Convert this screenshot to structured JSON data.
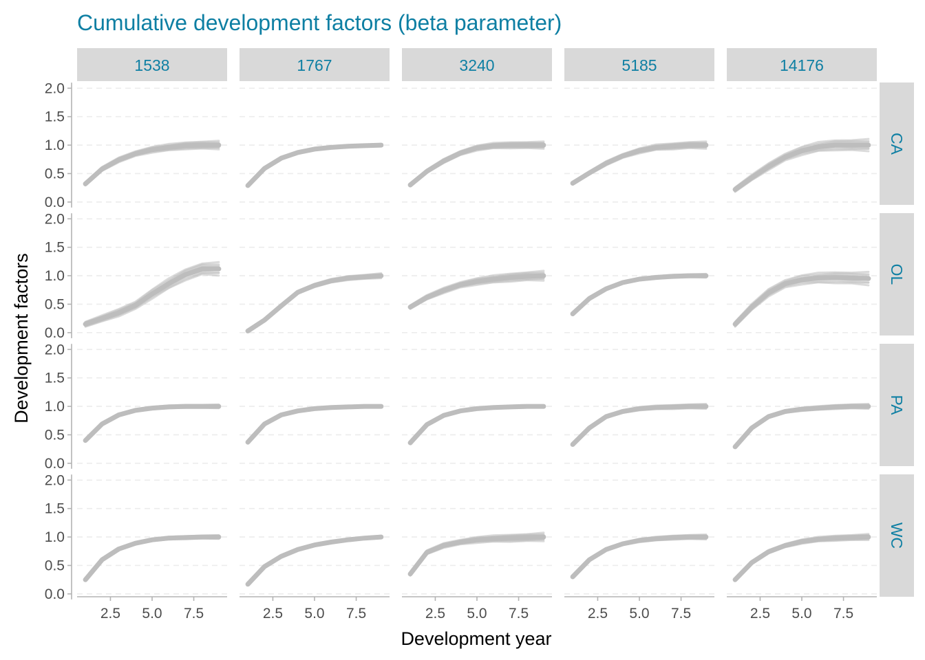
{
  "chart_data": {
    "type": "line",
    "title": "Cumulative development factors (beta parameter)",
    "xlabel": "Development year",
    "ylabel": "Development factors",
    "xlim": [
      0.5,
      9.5
    ],
    "ylim": [
      -0.05,
      2.1
    ],
    "x_ticks": [
      2.5,
      5.0,
      7.5
    ],
    "x_tick_labels": [
      "2.5",
      "5.0",
      "7.5"
    ],
    "y_ticks": [
      0.0,
      0.5,
      1.0,
      1.5,
      2.0
    ],
    "y_tick_labels": [
      "0.0",
      "0.5",
      "1.0",
      "1.5",
      "2.0"
    ],
    "columns": [
      "1538",
      "1767",
      "3240",
      "5185",
      "14176"
    ],
    "rows": [
      "CA",
      "OL",
      "PA",
      "WC"
    ],
    "x": [
      1,
      2,
      3,
      4,
      5,
      6,
      7,
      8,
      9
    ],
    "line_color": "#bdbdbd",
    "grid": true,
    "panels": [
      {
        "row": "CA",
        "col": "1538",
        "values": [
          0.32,
          0.58,
          0.74,
          0.85,
          0.92,
          0.96,
          0.99,
          1.0,
          1.0
        ],
        "spread": 0.07
      },
      {
        "row": "CA",
        "col": "1767",
        "values": [
          0.29,
          0.59,
          0.77,
          0.87,
          0.93,
          0.96,
          0.98,
          0.99,
          1.0
        ],
        "spread": 0.02
      },
      {
        "row": "CA",
        "col": "3240",
        "values": [
          0.3,
          0.54,
          0.72,
          0.86,
          0.95,
          0.99,
          1.0,
          1.0,
          1.0
        ],
        "spread": 0.06
      },
      {
        "row": "CA",
        "col": "5185",
        "values": [
          0.33,
          0.51,
          0.68,
          0.81,
          0.9,
          0.96,
          0.98,
          1.0,
          1.0
        ],
        "spread": 0.06
      },
      {
        "row": "CA",
        "col": "14176",
        "values": [
          0.22,
          0.43,
          0.62,
          0.79,
          0.9,
          0.97,
          1.0,
          1.0,
          1.0
        ],
        "spread": 0.1
      },
      {
        "row": "OL",
        "col": "1538",
        "values": [
          0.15,
          0.25,
          0.35,
          0.48,
          0.68,
          0.86,
          1.02,
          1.12,
          1.12
        ],
        "spread": 0.11
      },
      {
        "row": "OL",
        "col": "1767",
        "values": [
          0.03,
          0.22,
          0.47,
          0.71,
          0.83,
          0.91,
          0.96,
          0.98,
          1.0
        ],
        "spread": 0.04
      },
      {
        "row": "OL",
        "col": "3240",
        "values": [
          0.45,
          0.62,
          0.74,
          0.84,
          0.9,
          0.94,
          0.97,
          0.99,
          1.0
        ],
        "spread": 0.08
      },
      {
        "row": "OL",
        "col": "5185",
        "values": [
          0.33,
          0.6,
          0.77,
          0.88,
          0.94,
          0.97,
          0.99,
          1.0,
          1.0
        ],
        "spread": 0.03
      },
      {
        "row": "OL",
        "col": "14176",
        "values": [
          0.15,
          0.45,
          0.7,
          0.86,
          0.93,
          0.96,
          0.97,
          0.96,
          0.95
        ],
        "spread": 0.11
      },
      {
        "row": "PA",
        "col": "1538",
        "values": [
          0.4,
          0.69,
          0.85,
          0.93,
          0.97,
          0.99,
          1.0,
          1.0,
          1.0
        ],
        "spread": 0.03
      },
      {
        "row": "PA",
        "col": "1767",
        "values": [
          0.37,
          0.69,
          0.85,
          0.92,
          0.96,
          0.98,
          0.99,
          1.0,
          1.0
        ],
        "spread": 0.015
      },
      {
        "row": "PA",
        "col": "3240",
        "values": [
          0.36,
          0.68,
          0.84,
          0.92,
          0.96,
          0.98,
          0.99,
          1.0,
          1.0
        ],
        "spread": 0.015
      },
      {
        "row": "PA",
        "col": "5185",
        "values": [
          0.33,
          0.62,
          0.82,
          0.91,
          0.96,
          0.98,
          0.99,
          1.0,
          1.0
        ],
        "spread": 0.04
      },
      {
        "row": "PA",
        "col": "14176",
        "values": [
          0.29,
          0.62,
          0.82,
          0.91,
          0.95,
          0.97,
          0.99,
          1.0,
          1.0
        ],
        "spread": 0.04
      },
      {
        "row": "WC",
        "col": "1538",
        "values": [
          0.25,
          0.6,
          0.79,
          0.89,
          0.95,
          0.98,
          0.99,
          1.0,
          1.0
        ],
        "spread": 0.03
      },
      {
        "row": "WC",
        "col": "1767",
        "values": [
          0.17,
          0.48,
          0.66,
          0.78,
          0.86,
          0.91,
          0.95,
          0.98,
          1.0
        ],
        "spread": 0.02
      },
      {
        "row": "WC",
        "col": "3240",
        "values": [
          0.35,
          0.73,
          0.85,
          0.91,
          0.95,
          0.97,
          0.98,
          0.99,
          1.0
        ],
        "spread": 0.07
      },
      {
        "row": "WC",
        "col": "5185",
        "values": [
          0.3,
          0.6,
          0.78,
          0.88,
          0.94,
          0.97,
          0.99,
          1.0,
          1.0
        ],
        "spread": 0.04
      },
      {
        "row": "WC",
        "col": "14176",
        "values": [
          0.25,
          0.55,
          0.74,
          0.85,
          0.92,
          0.96,
          0.98,
          0.99,
          1.0
        ],
        "spread": 0.05
      }
    ]
  }
}
